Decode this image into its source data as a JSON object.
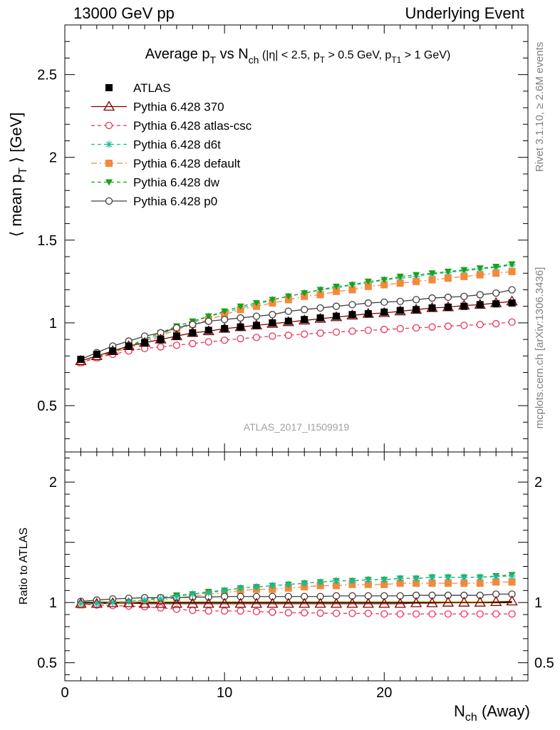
{
  "header": {
    "left": "13000 GeV pp",
    "right": "Underlying Event"
  },
  "side_labels": {
    "rivet": "Rivet 3.1.10, ≥ 2.6M events",
    "mcplots": "mcplots.cern.ch [arXiv:1306.3436]"
  },
  "watermark": "ATLAS_2017_I1509919",
  "chart_data": [
    {
      "type": "scatter",
      "panel": "main",
      "title": "Average p_T vs N_ch (|η| < 2.5, p_T > 0.5 GeV, p_T1 > 1 GeV)",
      "title_parts": {
        "main": "Average p",
        "main_sub": "T",
        "vs": " vs N",
        "vs_sub": "ch",
        "cuts_1": " (|η| < 2.5, p",
        "cuts_sub1": "T",
        "cuts_2": " > 0.5 GeV, p",
        "cuts_sub2": "T1",
        "cuts_3": " > 1 GeV)"
      },
      "ylabel": "⟨ mean p_T ⟩ [GeV]",
      "ylabel_parts": {
        "pre": "⟨ mean p",
        "sub": "T",
        "post": " ⟩ [GeV]"
      },
      "xlim": [
        0,
        29
      ],
      "ylim": [
        0.22,
        2.8
      ],
      "y_ticks": [
        "0.5",
        "1",
        "1.5",
        "2",
        "2.5"
      ],
      "x": [
        1,
        2,
        3,
        4,
        5,
        6,
        7,
        8,
        9,
        10,
        11,
        12,
        13,
        14,
        15,
        16,
        17,
        18,
        19,
        20,
        21,
        22,
        23,
        24,
        25,
        26,
        27,
        28
      ],
      "series": [
        {
          "name": "ATLAS",
          "color": "#000000",
          "marker": "square-filled",
          "line": "none",
          "values": [
            0.78,
            0.81,
            0.83,
            0.86,
            0.88,
            0.9,
            0.92,
            0.94,
            0.955,
            0.965,
            0.975,
            0.985,
            1.0,
            1.01,
            1.02,
            1.03,
            1.04,
            1.05,
            1.055,
            1.065,
            1.075,
            1.08,
            1.09,
            1.095,
            1.1,
            1.11,
            1.115,
            1.12
          ]
        },
        {
          "name": "Pythia 6.428 370",
          "color": "#800000",
          "marker": "triangle-open",
          "line": "solid",
          "values": [
            0.77,
            0.8,
            0.83,
            0.86,
            0.88,
            0.9,
            0.92,
            0.94,
            0.95,
            0.965,
            0.975,
            0.985,
            0.995,
            1.005,
            1.015,
            1.025,
            1.035,
            1.045,
            1.055,
            1.06,
            1.07,
            1.08,
            1.09,
            1.095,
            1.105,
            1.11,
            1.12,
            1.13
          ]
        },
        {
          "name": "Pythia 6.428 atlas-csc",
          "color": "#e8335a",
          "marker": "circle-open",
          "line": "dashed",
          "values": [
            0.76,
            0.79,
            0.81,
            0.83,
            0.845,
            0.855,
            0.865,
            0.875,
            0.885,
            0.895,
            0.905,
            0.912,
            0.92,
            0.925,
            0.932,
            0.938,
            0.944,
            0.95,
            0.955,
            0.96,
            0.965,
            0.97,
            0.975,
            0.98,
            0.985,
            0.99,
            0.995,
            1.005
          ]
        },
        {
          "name": "Pythia 6.428 d6t",
          "color": "#1abc9c",
          "marker": "star",
          "line": "dashed",
          "values": [
            0.76,
            0.79,
            0.82,
            0.86,
            0.89,
            0.93,
            0.97,
            1.0,
            1.04,
            1.06,
            1.09,
            1.11,
            1.14,
            1.16,
            1.18,
            1.2,
            1.21,
            1.23,
            1.24,
            1.26,
            1.27,
            1.28,
            1.295,
            1.305,
            1.315,
            1.325,
            1.335,
            1.35
          ]
        },
        {
          "name": "Pythia 6.428 default",
          "color": "#f5883c",
          "marker": "square-filled",
          "line": "dashdot",
          "values": [
            0.76,
            0.79,
            0.82,
            0.85,
            0.88,
            0.92,
            0.96,
            0.99,
            1.02,
            1.05,
            1.08,
            1.1,
            1.12,
            1.14,
            1.16,
            1.17,
            1.19,
            1.2,
            1.22,
            1.23,
            1.24,
            1.25,
            1.26,
            1.27,
            1.28,
            1.29,
            1.3,
            1.31
          ]
        },
        {
          "name": "Pythia 6.428 dw",
          "color": "#1ba11b",
          "marker": "triangle-down-filled",
          "line": "dashed",
          "values": [
            0.76,
            0.79,
            0.83,
            0.86,
            0.9,
            0.94,
            0.98,
            1.01,
            1.04,
            1.07,
            1.1,
            1.12,
            1.14,
            1.16,
            1.18,
            1.2,
            1.22,
            1.23,
            1.25,
            1.26,
            1.28,
            1.29,
            1.3,
            1.31,
            1.32,
            1.33,
            1.34,
            1.355
          ]
        },
        {
          "name": "Pythia 6.428 p0",
          "color": "#404040",
          "marker": "circle-open",
          "line": "solid",
          "values": [
            0.78,
            0.82,
            0.86,
            0.89,
            0.92,
            0.94,
            0.97,
            0.99,
            1.01,
            1.02,
            1.03,
            1.04,
            1.05,
            1.07,
            1.08,
            1.09,
            1.1,
            1.11,
            1.12,
            1.125,
            1.13,
            1.14,
            1.15,
            1.155,
            1.16,
            1.17,
            1.18,
            1.2
          ]
        }
      ]
    },
    {
      "type": "scatter",
      "panel": "ratio",
      "ylabel": "Ratio to ATLAS",
      "xlabel": "N_ch (Away)",
      "xlabel_parts": {
        "pre": "N",
        "sub": "ch",
        "post": " (Away)"
      },
      "xlim": [
        0,
        29
      ],
      "ylim": [
        0.35,
        2.25
      ],
      "x_ticks": [
        "0",
        "10",
        "20"
      ],
      "y_ticks": [
        "0.5",
        "1",
        "2"
      ],
      "reference_band_color": "#f0f060",
      "reference_line_color": "#000000",
      "x": [
        1,
        2,
        3,
        4,
        5,
        6,
        7,
        8,
        9,
        10,
        11,
        12,
        13,
        14,
        15,
        16,
        17,
        18,
        19,
        20,
        21,
        22,
        23,
        24,
        25,
        26,
        27,
        28
      ],
      "series": [
        {
          "name": "Pythia 6.428 370",
          "values": [
            0.99,
            0.99,
            0.995,
            0.995,
            0.99,
            0.99,
            0.99,
            0.99,
            0.99,
            0.99,
            0.99,
            0.99,
            0.99,
            0.99,
            0.99,
            0.99,
            0.99,
            0.99,
            0.99,
            0.99,
            0.99,
            0.995,
            0.995,
            1.0,
            1.0,
            1.0,
            1.005,
            1.01
          ]
        },
        {
          "name": "Pythia 6.428 atlas-csc",
          "values": [
            0.985,
            0.98,
            0.975,
            0.97,
            0.965,
            0.955,
            0.945,
            0.935,
            0.93,
            0.93,
            0.93,
            0.925,
            0.92,
            0.915,
            0.915,
            0.912,
            0.91,
            0.91,
            0.91,
            0.905,
            0.905,
            0.905,
            0.905,
            0.905,
            0.905,
            0.905,
            0.905,
            0.905
          ]
        },
        {
          "name": "Pythia 6.428 d6t",
          "values": [
            0.99,
            0.99,
            1.0,
            1.01,
            1.02,
            1.03,
            1.05,
            1.07,
            1.08,
            1.1,
            1.12,
            1.13,
            1.14,
            1.15,
            1.16,
            1.17,
            1.18,
            1.18,
            1.19,
            1.19,
            1.2,
            1.2,
            1.21,
            1.21,
            1.21,
            1.21,
            1.215,
            1.22
          ]
        },
        {
          "name": "Pythia 6.428 default",
          "values": [
            0.98,
            0.99,
            0.995,
            1.0,
            1.01,
            1.02,
            1.04,
            1.05,
            1.07,
            1.08,
            1.1,
            1.11,
            1.11,
            1.12,
            1.13,
            1.14,
            1.14,
            1.15,
            1.15,
            1.15,
            1.16,
            1.16,
            1.16,
            1.16,
            1.16,
            1.16,
            1.17,
            1.17
          ]
        },
        {
          "name": "Pythia 6.428 dw",
          "values": [
            0.99,
            0.99,
            1.0,
            1.01,
            1.02,
            1.04,
            1.06,
            1.07,
            1.09,
            1.1,
            1.12,
            1.13,
            1.14,
            1.15,
            1.16,
            1.17,
            1.18,
            1.18,
            1.19,
            1.19,
            1.2,
            1.2,
            1.21,
            1.21,
            1.21,
            1.21,
            1.22,
            1.23
          ]
        },
        {
          "name": "Pythia 6.428 p0",
          "values": [
            1.01,
            1.02,
            1.03,
            1.035,
            1.04,
            1.04,
            1.04,
            1.045,
            1.045,
            1.05,
            1.05,
            1.05,
            1.05,
            1.05,
            1.05,
            1.05,
            1.055,
            1.055,
            1.055,
            1.055,
            1.055,
            1.06,
            1.06,
            1.06,
            1.06,
            1.06,
            1.07,
            1.07
          ]
        }
      ]
    }
  ]
}
